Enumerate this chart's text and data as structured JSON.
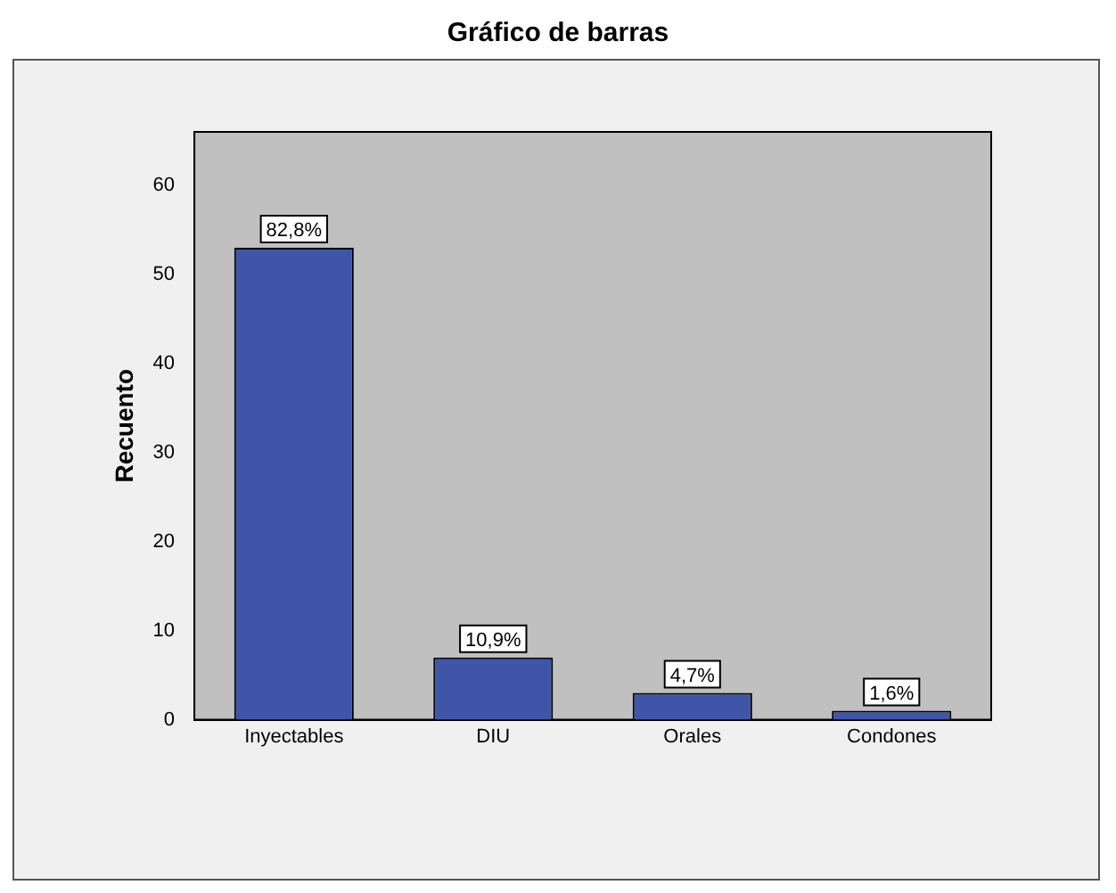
{
  "chart_data": {
    "type": "bar",
    "title": "Gráfico de barras",
    "ylabel": "Recuento",
    "categories": [
      "Inyectables",
      "DIU",
      "Orales",
      "Condones"
    ],
    "values": [
      53,
      7,
      3,
      1
    ],
    "annotations": [
      {
        "text": "82,8%",
        "x": "Inyectables",
        "y": 53
      },
      {
        "text": "10,9%",
        "x": "DIU",
        "y": 7
      },
      {
        "text": "4,7%",
        "x": "Orales",
        "y": 3
      },
      {
        "text": "1,6%",
        "x": "Condones",
        "y": 1
      }
    ],
    "color": "#3f56a8",
    "ylim": [
      0,
      66
    ],
    "yticks": [
      0,
      10,
      20,
      30,
      40,
      50,
      60
    ],
    "grid": false,
    "legend": false
  }
}
